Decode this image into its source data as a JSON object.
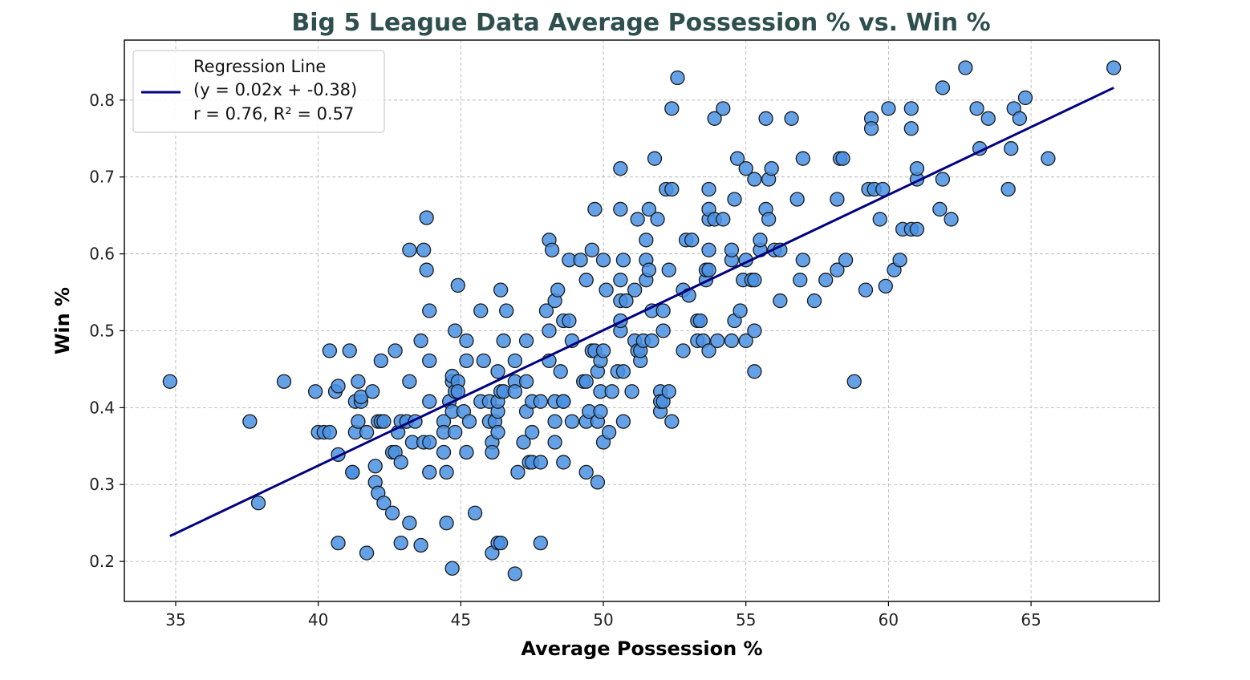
{
  "chart_data": {
    "type": "scatter",
    "title": "Big 5 League Data Average Possession % vs. Win %",
    "xlabel": "Average Possession %",
    "ylabel": "Win %",
    "xlim": [
      33.2,
      69.5
    ],
    "ylim": [
      0.148,
      0.878
    ],
    "xticks": [
      35,
      40,
      45,
      50,
      55,
      60,
      65
    ],
    "yticks": [
      0.2,
      0.3,
      0.4,
      0.5,
      0.6,
      0.7,
      0.8
    ],
    "xtick_labels": [
      "35",
      "40",
      "45",
      "50",
      "55",
      "60",
      "65"
    ],
    "ytick_labels": [
      "0.2",
      "0.3",
      "0.4",
      "0.5",
      "0.6",
      "0.7",
      "0.8"
    ],
    "grid": true,
    "legend_position": "top-left",
    "colors": {
      "title": "#2f4f4f",
      "points": "#4a90e2",
      "point_edge": "#1a1a1a",
      "regression": "#000080",
      "grid": "#b0b0b0"
    },
    "legend": {
      "lines": [
        "Regression Line",
        "(y = 0.02x + -0.38)",
        "r = 0.76, R² = 0.57"
      ]
    },
    "regression_line": {
      "x": [
        34.8,
        67.9
      ],
      "y": [
        0.233,
        0.816
      ]
    },
    "points": [
      [
        34.8,
        0.434
      ],
      [
        37.6,
        0.382
      ],
      [
        37.9,
        0.276
      ],
      [
        38.8,
        0.434
      ],
      [
        39.9,
        0.421
      ],
      [
        40.0,
        0.368
      ],
      [
        40.2,
        0.368
      ],
      [
        40.4,
        0.368
      ],
      [
        40.4,
        0.474
      ],
      [
        40.6,
        0.421
      ],
      [
        40.7,
        0.428
      ],
      [
        40.7,
        0.339
      ],
      [
        40.7,
        0.224
      ],
      [
        41.1,
        0.474
      ],
      [
        41.2,
        0.316
      ],
      [
        41.2,
        0.316
      ],
      [
        41.3,
        0.408
      ],
      [
        41.3,
        0.368
      ],
      [
        41.4,
        0.434
      ],
      [
        41.4,
        0.382
      ],
      [
        41.5,
        0.408
      ],
      [
        41.5,
        0.414
      ],
      [
        41.7,
        0.368
      ],
      [
        41.7,
        0.211
      ],
      [
        41.9,
        0.421
      ],
      [
        42.0,
        0.324
      ],
      [
        42.0,
        0.303
      ],
      [
        42.1,
        0.289
      ],
      [
        42.1,
        0.382
      ],
      [
        42.2,
        0.461
      ],
      [
        42.2,
        0.382
      ],
      [
        42.3,
        0.382
      ],
      [
        42.3,
        0.276
      ],
      [
        42.6,
        0.342
      ],
      [
        42.6,
        0.263
      ],
      [
        42.7,
        0.474
      ],
      [
        42.7,
        0.342
      ],
      [
        42.8,
        0.368
      ],
      [
        42.9,
        0.382
      ],
      [
        42.9,
        0.329
      ],
      [
        42.9,
        0.224
      ],
      [
        43.1,
        0.382
      ],
      [
        43.2,
        0.605
      ],
      [
        43.2,
        0.434
      ],
      [
        43.2,
        0.25
      ],
      [
        43.3,
        0.355
      ],
      [
        43.4,
        0.382
      ],
      [
        43.6,
        0.487
      ],
      [
        43.6,
        0.221
      ],
      [
        43.7,
        0.605
      ],
      [
        43.7,
        0.355
      ],
      [
        43.8,
        0.647
      ],
      [
        43.8,
        0.579
      ],
      [
        43.9,
        0.526
      ],
      [
        43.9,
        0.461
      ],
      [
        43.9,
        0.408
      ],
      [
        43.9,
        0.355
      ],
      [
        43.9,
        0.316
      ],
      [
        44.4,
        0.382
      ],
      [
        44.4,
        0.368
      ],
      [
        44.4,
        0.342
      ],
      [
        44.5,
        0.25
      ],
      [
        44.5,
        0.316
      ],
      [
        44.6,
        0.408
      ],
      [
        44.7,
        0.434
      ],
      [
        44.7,
        0.395
      ],
      [
        44.7,
        0.441
      ],
      [
        44.7,
        0.191
      ],
      [
        44.8,
        0.5
      ],
      [
        44.8,
        0.421
      ],
      [
        44.8,
        0.368
      ],
      [
        44.9,
        0.434
      ],
      [
        44.9,
        0.421
      ],
      [
        44.9,
        0.559
      ],
      [
        45.1,
        0.395
      ],
      [
        45.2,
        0.487
      ],
      [
        45.2,
        0.461
      ],
      [
        45.2,
        0.342
      ],
      [
        45.3,
        0.382
      ],
      [
        45.5,
        0.263
      ],
      [
        45.7,
        0.526
      ],
      [
        45.7,
        0.408
      ],
      [
        45.8,
        0.461
      ],
      [
        46.0,
        0.382
      ],
      [
        46.0,
        0.408
      ],
      [
        46.1,
        0.355
      ],
      [
        46.1,
        0.342
      ],
      [
        46.1,
        0.211
      ],
      [
        46.2,
        0.382
      ],
      [
        46.3,
        0.224
      ],
      [
        46.3,
        0.395
      ],
      [
        46.3,
        0.368
      ],
      [
        46.3,
        0.408
      ],
      [
        46.3,
        0.447
      ],
      [
        46.4,
        0.224
      ],
      [
        46.4,
        0.553
      ],
      [
        46.4,
        0.421
      ],
      [
        46.5,
        0.421
      ],
      [
        46.5,
        0.487
      ],
      [
        46.6,
        0.526
      ],
      [
        46.9,
        0.461
      ],
      [
        46.9,
        0.434
      ],
      [
        46.9,
        0.421
      ],
      [
        46.9,
        0.184
      ],
      [
        47.0,
        0.316
      ],
      [
        47.2,
        0.355
      ],
      [
        47.3,
        0.487
      ],
      [
        47.3,
        0.395
      ],
      [
        47.3,
        0.434
      ],
      [
        47.4,
        0.329
      ],
      [
        47.5,
        0.329
      ],
      [
        47.5,
        0.408
      ],
      [
        47.5,
        0.368
      ],
      [
        47.8,
        0.329
      ],
      [
        47.8,
        0.408
      ],
      [
        47.8,
        0.224
      ],
      [
        48.0,
        0.526
      ],
      [
        48.1,
        0.5
      ],
      [
        48.1,
        0.461
      ],
      [
        48.1,
        0.618
      ],
      [
        48.2,
        0.605
      ],
      [
        48.3,
        0.539
      ],
      [
        48.3,
        0.408
      ],
      [
        48.3,
        0.355
      ],
      [
        48.3,
        0.382
      ],
      [
        48.4,
        0.553
      ],
      [
        48.5,
        0.447
      ],
      [
        48.6,
        0.408
      ],
      [
        48.6,
        0.408
      ],
      [
        48.6,
        0.513
      ],
      [
        48.6,
        0.329
      ],
      [
        48.8,
        0.592
      ],
      [
        48.8,
        0.513
      ],
      [
        48.9,
        0.382
      ],
      [
        48.9,
        0.487
      ],
      [
        49.2,
        0.592
      ],
      [
        49.3,
        0.434
      ],
      [
        49.4,
        0.434
      ],
      [
        49.4,
        0.316
      ],
      [
        49.4,
        0.566
      ],
      [
        49.4,
        0.382
      ],
      [
        49.5,
        0.395
      ],
      [
        49.6,
        0.474
      ],
      [
        49.6,
        0.605
      ],
      [
        49.7,
        0.658
      ],
      [
        49.7,
        0.474
      ],
      [
        49.8,
        0.303
      ],
      [
        49.8,
        0.382
      ],
      [
        49.8,
        0.447
      ],
      [
        49.9,
        0.421
      ],
      [
        49.9,
        0.395
      ],
      [
        49.9,
        0.461
      ],
      [
        50.0,
        0.592
      ],
      [
        50.0,
        0.474
      ],
      [
        50.0,
        0.355
      ],
      [
        50.1,
        0.553
      ],
      [
        50.2,
        0.368
      ],
      [
        50.3,
        0.421
      ],
      [
        50.5,
        0.447
      ],
      [
        50.6,
        0.5
      ],
      [
        50.6,
        0.539
      ],
      [
        50.6,
        0.658
      ],
      [
        50.6,
        0.711
      ],
      [
        50.6,
        0.513
      ],
      [
        50.6,
        0.566
      ],
      [
        50.7,
        0.447
      ],
      [
        50.7,
        0.382
      ],
      [
        50.7,
        0.592
      ],
      [
        50.8,
        0.539
      ],
      [
        51.0,
        0.421
      ],
      [
        51.1,
        0.553
      ],
      [
        51.1,
        0.487
      ],
      [
        51.2,
        0.474
      ],
      [
        51.2,
        0.645
      ],
      [
        51.3,
        0.461
      ],
      [
        51.3,
        0.474
      ],
      [
        51.4,
        0.487
      ],
      [
        51.5,
        0.566
      ],
      [
        51.5,
        0.618
      ],
      [
        51.5,
        0.592
      ],
      [
        51.6,
        0.658
      ],
      [
        51.6,
        0.579
      ],
      [
        51.7,
        0.487
      ],
      [
        51.7,
        0.526
      ],
      [
        51.8,
        0.724
      ],
      [
        51.9,
        0.645
      ],
      [
        52.0,
        0.395
      ],
      [
        52.0,
        0.421
      ],
      [
        52.0,
        0.408
      ],
      [
        52.1,
        0.5
      ],
      [
        52.1,
        0.408
      ],
      [
        52.1,
        0.526
      ],
      [
        52.2,
        0.684
      ],
      [
        52.3,
        0.421
      ],
      [
        52.3,
        0.579
      ],
      [
        52.4,
        0.382
      ],
      [
        52.4,
        0.789
      ],
      [
        52.4,
        0.684
      ],
      [
        52.6,
        0.829
      ],
      [
        52.8,
        0.474
      ],
      [
        52.8,
        0.553
      ],
      [
        52.9,
        0.618
      ],
      [
        53.0,
        0.546
      ],
      [
        53.1,
        0.618
      ],
      [
        53.3,
        0.513
      ],
      [
        53.3,
        0.487
      ],
      [
        53.4,
        0.513
      ],
      [
        53.5,
        0.487
      ],
      [
        53.6,
        0.566
      ],
      [
        53.6,
        0.579
      ],
      [
        53.7,
        0.579
      ],
      [
        53.7,
        0.605
      ],
      [
        53.7,
        0.474
      ],
      [
        53.7,
        0.684
      ],
      [
        53.7,
        0.645
      ],
      [
        53.7,
        0.658
      ],
      [
        53.9,
        0.776
      ],
      [
        53.9,
        0.645
      ],
      [
        54.0,
        0.487
      ],
      [
        54.2,
        0.789
      ],
      [
        54.2,
        0.645
      ],
      [
        54.5,
        0.592
      ],
      [
        54.5,
        0.487
      ],
      [
        54.5,
        0.605
      ],
      [
        54.6,
        0.513
      ],
      [
        54.6,
        0.671
      ],
      [
        54.7,
        0.724
      ],
      [
        54.8,
        0.526
      ],
      [
        54.9,
        0.566
      ],
      [
        55.0,
        0.487
      ],
      [
        55.0,
        0.711
      ],
      [
        55.0,
        0.592
      ],
      [
        55.2,
        0.566
      ],
      [
        55.3,
        0.5
      ],
      [
        55.3,
        0.697
      ],
      [
        55.3,
        0.447
      ],
      [
        55.3,
        0.566
      ],
      [
        55.5,
        0.605
      ],
      [
        55.5,
        0.618
      ],
      [
        55.7,
        0.776
      ],
      [
        55.7,
        0.658
      ],
      [
        55.8,
        0.645
      ],
      [
        55.8,
        0.697
      ],
      [
        55.9,
        0.711
      ],
      [
        56.0,
        0.605
      ],
      [
        56.2,
        0.539
      ],
      [
        56.2,
        0.605
      ],
      [
        56.6,
        0.776
      ],
      [
        56.8,
        0.671
      ],
      [
        56.9,
        0.566
      ],
      [
        57.0,
        0.724
      ],
      [
        57.0,
        0.592
      ],
      [
        57.4,
        0.539
      ],
      [
        57.8,
        0.566
      ],
      [
        58.2,
        0.671
      ],
      [
        58.2,
        0.579
      ],
      [
        58.3,
        0.724
      ],
      [
        58.4,
        0.724
      ],
      [
        58.5,
        0.592
      ],
      [
        58.8,
        0.434
      ],
      [
        59.2,
        0.553
      ],
      [
        59.3,
        0.684
      ],
      [
        59.4,
        0.776
      ],
      [
        59.4,
        0.763
      ],
      [
        59.5,
        0.684
      ],
      [
        59.7,
        0.645
      ],
      [
        59.8,
        0.684
      ],
      [
        59.9,
        0.558
      ],
      [
        60.0,
        0.789
      ],
      [
        60.2,
        0.579
      ],
      [
        60.4,
        0.592
      ],
      [
        60.5,
        0.632
      ],
      [
        60.8,
        0.632
      ],
      [
        60.8,
        0.763
      ],
      [
        60.8,
        0.789
      ],
      [
        61.0,
        0.632
      ],
      [
        61.0,
        0.697
      ],
      [
        61.0,
        0.711
      ],
      [
        61.8,
        0.658
      ],
      [
        61.9,
        0.697
      ],
      [
        61.9,
        0.816
      ],
      [
        62.2,
        0.645
      ],
      [
        62.7,
        0.842
      ],
      [
        63.1,
        0.789
      ],
      [
        63.2,
        0.737
      ],
      [
        63.5,
        0.776
      ],
      [
        64.2,
        0.684
      ],
      [
        64.3,
        0.737
      ],
      [
        64.4,
        0.789
      ],
      [
        64.6,
        0.776
      ],
      [
        64.8,
        0.803
      ],
      [
        65.6,
        0.724
      ],
      [
        67.9,
        0.842
      ]
    ]
  }
}
